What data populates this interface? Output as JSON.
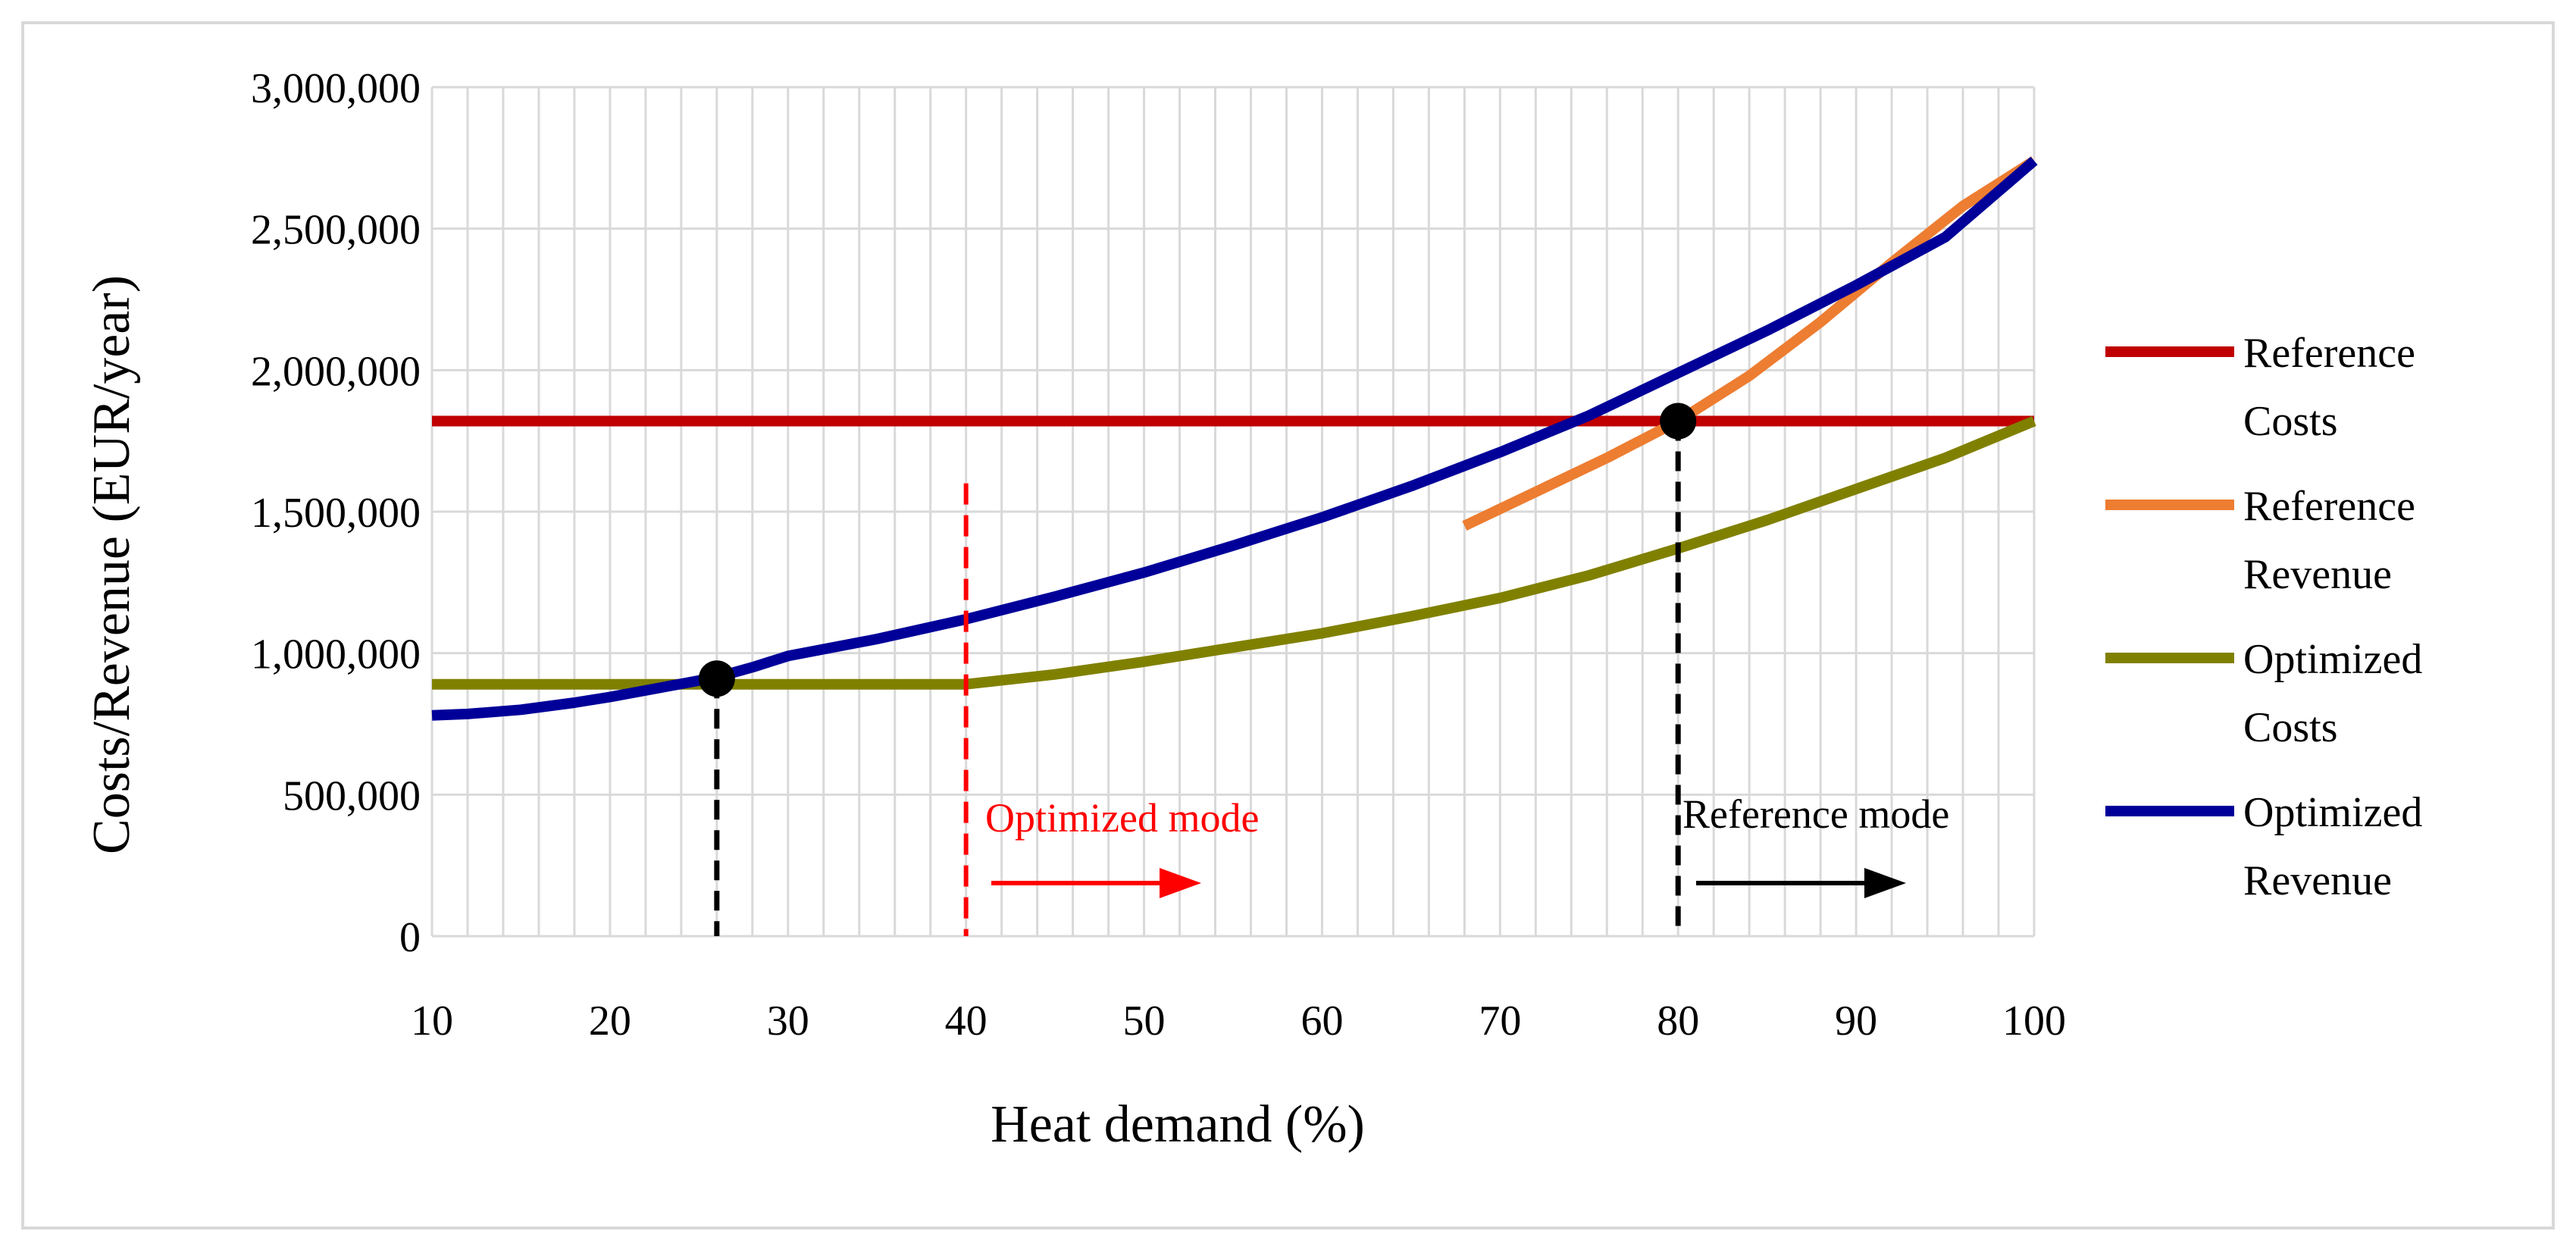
{
  "chart_data": {
    "type": "line",
    "title": "",
    "xlabel": "Heat demand (%)",
    "ylabel": "Costs/Revenue (EUR/year)",
    "xlim": [
      10,
      100
    ],
    "ylim": [
      0,
      3000000
    ],
    "x_ticks": [
      10,
      20,
      30,
      40,
      50,
      60,
      70,
      80,
      90,
      100
    ],
    "x_tick_labels": [
      "10",
      "20",
      "30",
      "40",
      "50",
      "60",
      "70",
      "80",
      "90",
      "100"
    ],
    "y_ticks": [
      0,
      500000,
      1000000,
      1500000,
      2000000,
      2500000,
      3000000
    ],
    "y_tick_labels": [
      "0",
      "500,000",
      "1,000,000",
      "1,500,000",
      "2,000,000",
      "2,500,000",
      "3,000,000"
    ],
    "grid": true,
    "legend_position": "right",
    "series": [
      {
        "name": "Reference Costs",
        "legend_lines": [
          "Reference",
          "Costs"
        ],
        "color": "#c00000",
        "x": [
          10,
          100
        ],
        "y": [
          1820000,
          1820000
        ]
      },
      {
        "name": "Reference Revenue",
        "legend_lines": [
          "Reference",
          "Revenue"
        ],
        "color": "#ed7d31",
        "x": [
          68,
          72,
          76,
          80,
          84,
          88,
          92,
          96,
          100
        ],
        "y": [
          1450000,
          1570000,
          1690000,
          1820000,
          1980000,
          2170000,
          2380000,
          2580000,
          2740000
        ]
      },
      {
        "name": "Optimized Costs",
        "legend_lines": [
          "Optimized",
          "Costs"
        ],
        "color": "#808000",
        "x": [
          10,
          20,
          30,
          40,
          45,
          50,
          55,
          60,
          65,
          70,
          75,
          80,
          85,
          90,
          95,
          100
        ],
        "y": [
          890000,
          890000,
          890000,
          890000,
          925000,
          970000,
          1020000,
          1070000,
          1130000,
          1195000,
          1275000,
          1370000,
          1470000,
          1580000,
          1690000,
          1820000
        ]
      },
      {
        "name": "Optimized Revenue",
        "legend_lines": [
          "Optimized",
          "Revenue"
        ],
        "color": "#000099",
        "x": [
          10,
          12,
          15,
          18,
          20,
          23,
          26,
          28,
          30,
          35,
          40,
          45,
          50,
          55,
          60,
          65,
          70,
          75,
          80,
          85,
          90,
          95,
          100
        ],
        "y": [
          780000,
          785000,
          800000,
          825000,
          845000,
          880000,
          915000,
          950000,
          990000,
          1050000,
          1120000,
          1200000,
          1285000,
          1380000,
          1480000,
          1590000,
          1710000,
          1840000,
          1990000,
          2140000,
          2300000,
          2470000,
          2740000
        ]
      }
    ],
    "intersection_points": [
      {
        "x": 26,
        "y": 910000
      },
      {
        "x": 80,
        "y": 1820000
      }
    ],
    "annotations": [
      {
        "name": "optimized-mode",
        "text": "Optimized mode",
        "boundary_x": 40,
        "boundary_y_top": 1600000,
        "color": "#ff0000"
      },
      {
        "name": "reference-mode",
        "text": "Reference mode",
        "boundary_x": 80,
        "color": "#000000"
      }
    ]
  }
}
